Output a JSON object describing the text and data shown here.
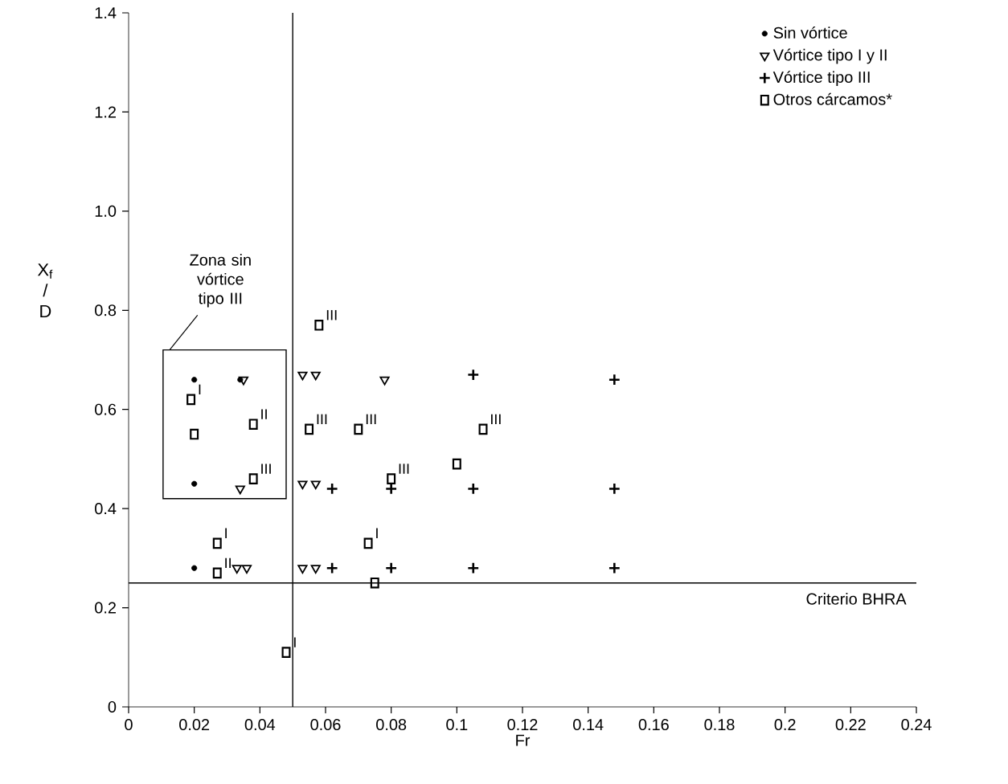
{
  "chart_data": {
    "type": "scatter",
    "xlabel": "Fr",
    "ylabel": "X$_{f}$ / D",
    "xlim": [
      0,
      0.24
    ],
    "ylim": [
      0,
      1.4
    ],
    "xticks": [
      0,
      0.02,
      0.04,
      0.06,
      0.08,
      0.1,
      0.12,
      0.14,
      0.16,
      0.18,
      0.2,
      0.22,
      0.24
    ],
    "yticks": [
      0,
      0.2,
      0.4,
      0.6,
      0.8,
      {
        "value": 1.0,
        "label": "1.0"
      },
      1.2,
      1.4
    ],
    "legend": "top right",
    "grid": false,
    "series": [
      {
        "name": "Sin vórtice",
        "color": "#000000",
        "marker": "circle",
        "x": [
          0.02,
          0.02,
          0.02,
          0.034
        ],
        "values": [
          0.66,
          0.45,
          0.28,
          0.66
        ]
      },
      {
        "name": "Vórtice tipo I y II",
        "color": "#000000",
        "marker": "triangle",
        "x": [
          0.035,
          0.034,
          0.033,
          0.036,
          0.053,
          0.057,
          0.078,
          0.053,
          0.057,
          0.053,
          0.057
        ],
        "values": [
          0.66,
          0.44,
          0.28,
          0.28,
          0.67,
          0.67,
          0.66,
          0.45,
          0.45,
          0.28,
          0.28
        ]
      },
      {
        "name": "Vórtice tipo III",
        "color": "#000000",
        "marker": "cross",
        "x": [
          0.062,
          0.062,
          0.08,
          0.08,
          0.105,
          0.105,
          0.105,
          0.148,
          0.148,
          0.148
        ],
        "values": [
          0.44,
          0.28,
          0.44,
          0.28,
          0.67,
          0.44,
          0.28,
          0.66,
          0.44,
          0.28
        ]
      },
      {
        "name": "Otros cárcamos*",
        "color": "#000000",
        "marker": "square",
        "x": [
          0.019,
          0.02,
          0.038,
          0.038,
          0.027,
          0.027,
          0.058,
          0.055,
          0.07,
          0.08,
          0.073,
          0.075,
          0.1,
          0.108,
          0.048
        ],
        "values": [
          0.62,
          0.55,
          0.57,
          0.46,
          0.33,
          0.27,
          0.77,
          0.56,
          0.56,
          0.46,
          0.33,
          0.25,
          0.49,
          0.56,
          0.11
        ]
      }
    ],
    "ref_lines": [
      {
        "axis": "x",
        "value": 0.05
      },
      {
        "axis": "y",
        "value": 0.25,
        "label": "Criterio BHRA"
      }
    ],
    "annotations": [
      "Zona sin vórtice tipo III",
      {
        "text": "I",
        "x": 0.019,
        "y": 0.62
      },
      {
        "text": "II",
        "x": 0.038,
        "y": 0.57
      },
      {
        "text": "III",
        "x": 0.038,
        "y": 0.46
      },
      {
        "text": "I",
        "x": 0.027,
        "y": 0.33
      },
      {
        "text": "II",
        "x": 0.027,
        "y": 0.27
      },
      {
        "text": "III",
        "x": 0.058,
        "y": 0.77
      },
      {
        "text": "III",
        "x": 0.055,
        "y": 0.56
      },
      {
        "text": "III",
        "x": 0.07,
        "y": 0.56
      },
      {
        "text": "III",
        "x": 0.08,
        "y": 0.46
      },
      {
        "text": "I",
        "x": 0.073,
        "y": 0.33
      },
      {
        "text": "III",
        "x": 0.108,
        "y": 0.56
      },
      {
        "text": "I",
        "x": 0.048,
        "y": 0.11
      }
    ]
  }
}
